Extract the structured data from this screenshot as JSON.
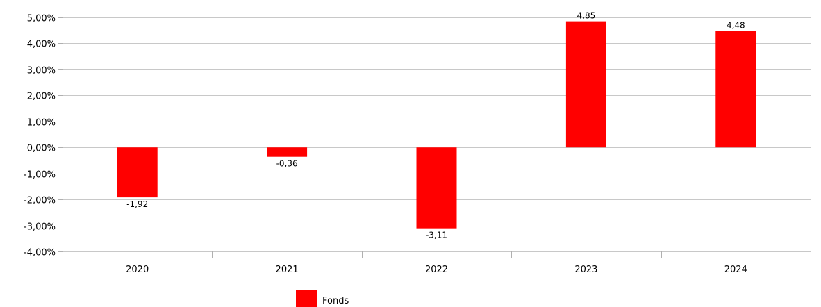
{
  "chart_data": {
    "type": "bar",
    "categories": [
      "2020",
      "2021",
      "2022",
      "2023",
      "2024"
    ],
    "series": [
      {
        "name": "Fonds",
        "values": [
          -1.92,
          -0.36,
          -3.11,
          4.85,
          4.48
        ],
        "data_labels": [
          "-1,92",
          "-0,36",
          "-3,11",
          "4,85",
          "4,48"
        ],
        "color": "#ff0000"
      }
    ],
    "ylim": [
      -4,
      5
    ],
    "y_ticks": [
      5,
      4,
      3,
      2,
      1,
      0,
      -1,
      -2,
      -3,
      -4
    ],
    "y_tick_labels": [
      "5,00%",
      "4,00%",
      "3,00%",
      "2,00%",
      "1,00%",
      "0,00%",
      "-1,00%",
      "-2,00%",
      "-3,00%",
      "-4,00%"
    ],
    "grid": true,
    "legend": "bottom",
    "title": "",
    "xlabel": "",
    "ylabel": ""
  }
}
